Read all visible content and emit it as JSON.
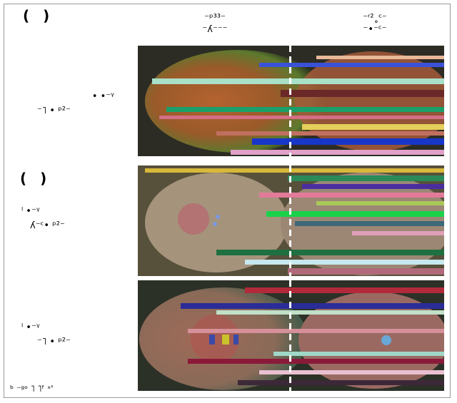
{
  "panels": {
    "a": {
      "label": "( )"
    },
    "b": {
      "label": "( )"
    }
  },
  "column_headers": {
    "left": {
      "line1": "⁻ᵖ³³⁻",
      "line2": "⁻ʎ⁻⁻⁻"
    },
    "right": {
      "line1": "⁻ʳ²˳ᶜ⁻",
      "line2": "⁻•⁻ᶜ⁻"
    }
  },
  "row_labels": {
    "row1": {
      "line1": "•  •⁻ᵞ",
      "line2": "⁻˥ •  ᵖ²⁻"
    },
    "row2": {
      "line1": "ˡ  •⁻ᵞ",
      "line2": "ʎ⁻ᶜ•  ᵖ²⁻"
    },
    "row3": {
      "line1": "ˡ  •⁻ᵞ",
      "line2": "⁻˥ •  ᵖ²⁻"
    }
  },
  "footnote": "ᵇ ⁻ᵍᵒ ˥ ˥ᶠ ˣ'",
  "images": [
    {
      "name": "micrograph-row1",
      "palette": "rust-green-oocyte"
    },
    {
      "name": "micrograph-row2",
      "palette": "khaki-embryo"
    },
    {
      "name": "micrograph-row3",
      "palette": "rust-green-embryo-blue-yellow"
    }
  ]
}
